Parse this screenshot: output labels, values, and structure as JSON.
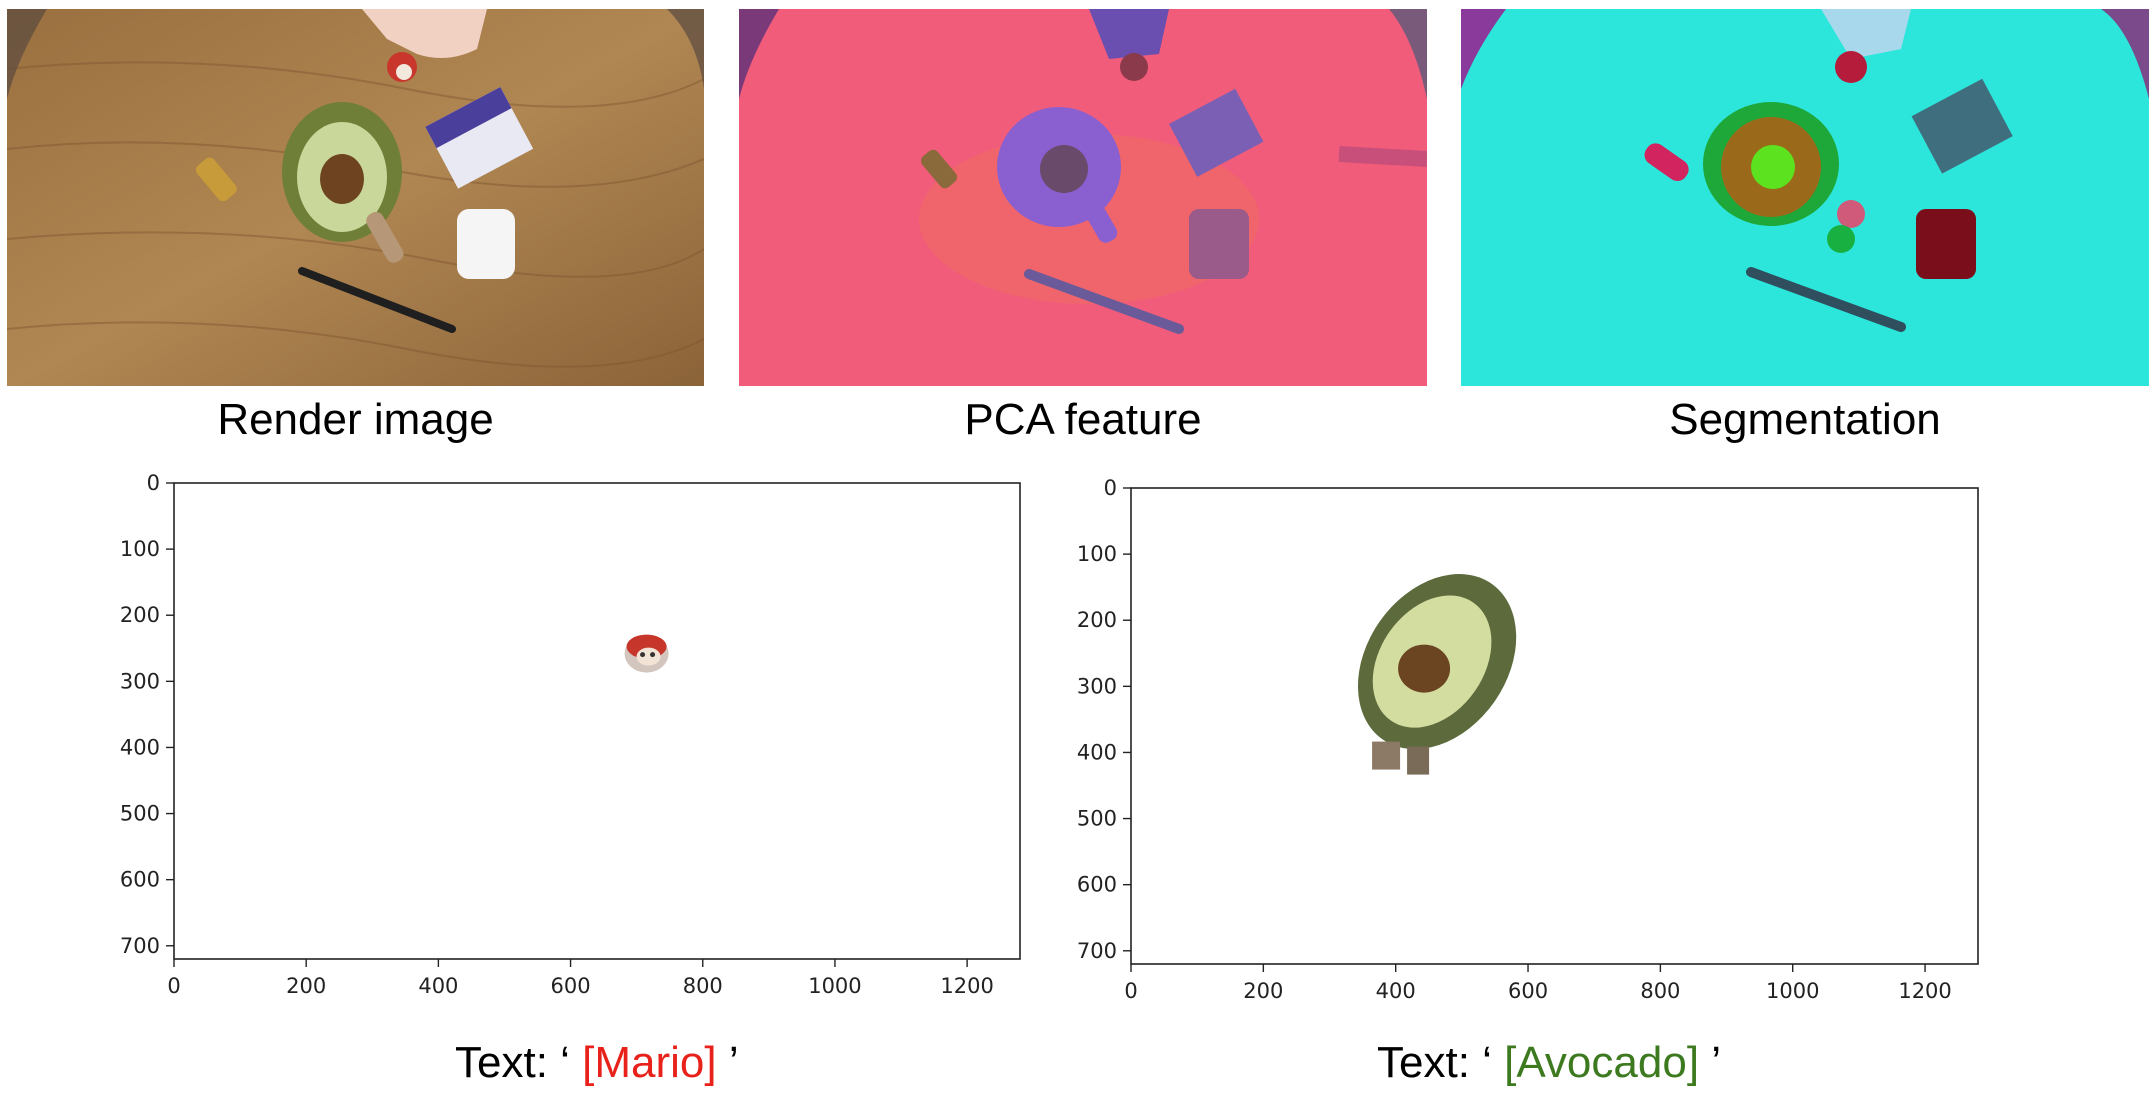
{
  "figure": {
    "top_panels": [
      {
        "caption": "Render image"
      },
      {
        "caption": "PCA feature"
      },
      {
        "caption": "Segmentation"
      }
    ],
    "colors": {
      "mario_query": "#e8221b",
      "avocado_query": "#3d7a1f",
      "pca_background": "#f25c7b",
      "segmentation_background": "#2ce6dc"
    },
    "queries": [
      {
        "prefix": "Text: ‘ ",
        "query": "[Mario]",
        "suffix": " ’",
        "color": "#e8221b"
      },
      {
        "prefix": "Text: ‘ ",
        "query": "[Avocado]",
        "suffix": " ’",
        "color": "#3d7a1f"
      }
    ]
  },
  "chart_data": [
    {
      "type": "scatter",
      "title": "",
      "xlabel": "",
      "ylabel": "",
      "xlim": [
        0,
        1280
      ],
      "ylim": [
        720,
        0
      ],
      "xticks": [
        0,
        200,
        400,
        600,
        800,
        1000,
        1200
      ],
      "yticks": [
        0,
        100,
        200,
        300,
        400,
        500,
        600,
        700
      ],
      "xtick_labels": [
        "0",
        "200",
        "400",
        "600",
        "800",
        "1000",
        "1200"
      ],
      "ytick_labels": [
        "0",
        "100",
        "200",
        "300",
        "400",
        "500",
        "600",
        "700"
      ],
      "grid": false,
      "segmented_object": {
        "name": "Mario",
        "center": [
          715,
          255
        ]
      }
    },
    {
      "type": "scatter",
      "title": "",
      "xlabel": "",
      "ylabel": "",
      "xlim": [
        0,
        1280
      ],
      "ylim": [
        720,
        0
      ],
      "xticks": [
        0,
        200,
        400,
        600,
        800,
        1000,
        1200
      ],
      "yticks": [
        0,
        100,
        200,
        300,
        400,
        500,
        600,
        700
      ],
      "xtick_labels": [
        "0",
        "200",
        "400",
        "600",
        "800",
        "1000",
        "1200"
      ],
      "ytick_labels": [
        "0",
        "100",
        "200",
        "300",
        "400",
        "500",
        "600",
        "700"
      ],
      "grid": false,
      "segmented_object": {
        "name": "Avocado",
        "center": [
          455,
          255
        ]
      }
    }
  ]
}
